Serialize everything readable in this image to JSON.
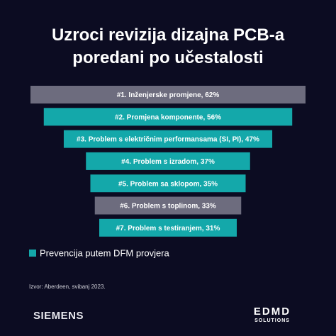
{
  "chart_data": {
    "type": "funnel",
    "title": "Uzroci revizija dizajna PCB-a poredani po učestalosti",
    "values": [
      62,
      56,
      47,
      37,
      35,
      33,
      31
    ],
    "value_labels": [
      "#1. Inženjerske promjene, 62%",
      "#2. Promjena komponente, 56%",
      "#3. Problem s električnim performansama (SI, PI), 47%",
      "#4. Problem s izradom, 37%",
      "#5. Problem sa sklopom, 35%",
      "#6. Problem s toplinom, 33%",
      "#7. Problem s testiranjem, 31%"
    ],
    "colors": [
      "#6d6c7e",
      "#14a8aa",
      "#14a8aa",
      "#14a8aa",
      "#14a8aa",
      "#6d6c7e",
      "#14a8aa"
    ],
    "legend": {
      "label": "Prevencija putem DFM provjera",
      "color": "#14a8aa"
    },
    "source": "Izvor: Aberdeen, svibanj 2023.",
    "brand_left": "SIEMENS",
    "brand_right": [
      "EDMD",
      "SOLUTIONS"
    ]
  }
}
